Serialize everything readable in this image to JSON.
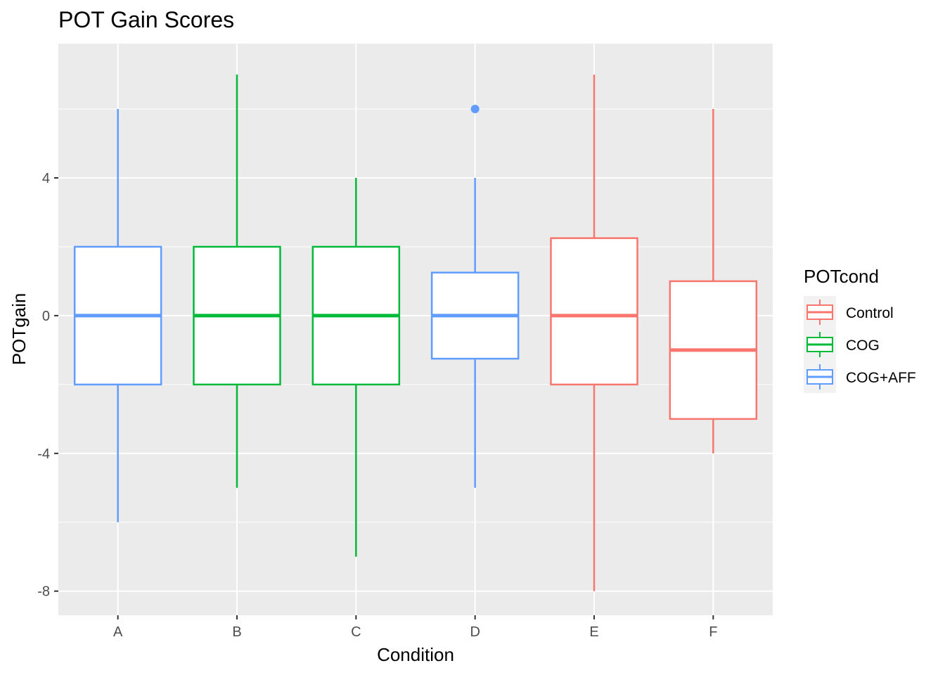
{
  "chart_data": {
    "type": "boxplot",
    "title": "POT Gain Scores",
    "xlabel": "Condition",
    "ylabel": "POTgain",
    "categories": [
      "A",
      "B",
      "C",
      "D",
      "E",
      "F"
    ],
    "ylim": [
      -8.7,
      7.9
    ],
    "y_ticks": [
      -8,
      -4,
      0,
      4
    ],
    "y_tick_labels": [
      "-8",
      "-4",
      "0",
      "4"
    ],
    "grid": true,
    "legend": {
      "title": "POTcond",
      "placement": "right",
      "entries": [
        {
          "label": "Control",
          "color": "#F8766D"
        },
        {
          "label": "COG",
          "color": "#00BA38"
        },
        {
          "label": "COG+AFF",
          "color": "#619CFF"
        }
      ]
    },
    "boxes": [
      {
        "category": "A",
        "group": "COG+AFF",
        "min": -6,
        "q1": -2,
        "median": 0,
        "q3": 2,
        "max": 6,
        "outliers": []
      },
      {
        "category": "B",
        "group": "COG",
        "min": -5,
        "q1": -2,
        "median": 0,
        "q3": 2,
        "max": 7,
        "outliers": []
      },
      {
        "category": "C",
        "group": "COG",
        "min": -7,
        "q1": -2,
        "median": 0,
        "q3": 2,
        "max": 4,
        "outliers": []
      },
      {
        "category": "D",
        "group": "COG+AFF",
        "min": -5,
        "q1": -1.25,
        "median": 0,
        "q3": 1.25,
        "max": 4,
        "outliers": [
          6
        ]
      },
      {
        "category": "E",
        "group": "Control",
        "min": -8,
        "q1": -2,
        "median": 0,
        "q3": 2.25,
        "max": 7,
        "outliers": []
      },
      {
        "category": "F",
        "group": "Control",
        "min": -4,
        "q1": -3,
        "median": -1,
        "q3": 1,
        "max": 6,
        "outliers": []
      }
    ]
  }
}
